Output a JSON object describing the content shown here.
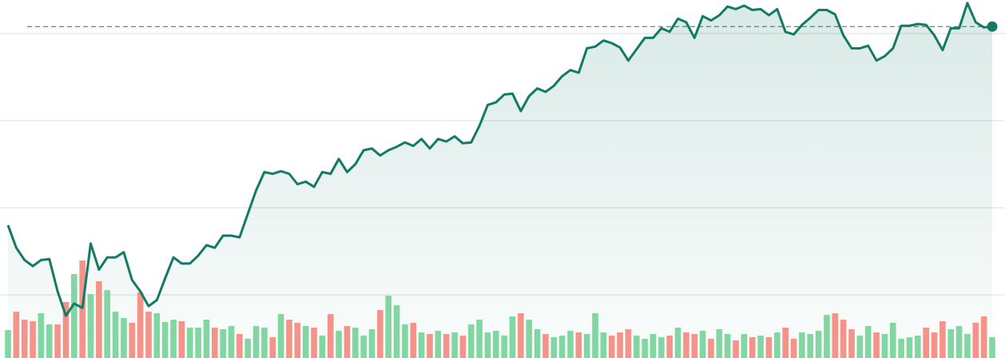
{
  "chart_data": {
    "type": "line",
    "categories": [
      null,
      null,
      null,
      null,
      null,
      null,
      null,
      null,
      null,
      null,
      null,
      null,
      null,
      null,
      null,
      null,
      null,
      null,
      null,
      null,
      null,
      null,
      null,
      null,
      null,
      null,
      null,
      null,
      null,
      null,
      null,
      null,
      null,
      null,
      null,
      null,
      null,
      null,
      null,
      null,
      null,
      null,
      null,
      null,
      null,
      null,
      null,
      null,
      null,
      null,
      null,
      null,
      null,
      null,
      null,
      null,
      null,
      null,
      null,
      null,
      null,
      null,
      null,
      null,
      null,
      null,
      null,
      null,
      null,
      null,
      null,
      null,
      null,
      null,
      null,
      null,
      null,
      null,
      null,
      null,
      null,
      null,
      null,
      null,
      null,
      null,
      null,
      null,
      null,
      null,
      null,
      null,
      null,
      null,
      null,
      null,
      null,
      null,
      null,
      null,
      null,
      null,
      null,
      null,
      null,
      null,
      null,
      null,
      null,
      null,
      null,
      null,
      null,
      null,
      null,
      null,
      null,
      null,
      null,
      null
    ],
    "values": [
      180,
      154,
      140,
      133,
      140,
      141,
      104,
      76,
      90,
      85,
      159,
      129,
      143,
      143,
      149,
      117,
      104,
      87,
      94,
      119,
      143,
      136,
      136,
      145,
      157,
      154,
      168,
      168,
      166,
      193,
      220,
      241,
      239,
      242,
      239,
      227,
      230,
      224,
      241,
      239,
      256,
      241,
      250,
      266,
      268,
      260,
      266,
      270,
      275,
      271,
      279,
      268,
      279,
      276,
      282,
      274,
      275,
      294,
      318,
      321,
      330,
      331,
      311,
      328,
      337,
      333,
      340,
      351,
      358,
      355,
      383,
      385,
      392,
      389,
      384,
      369,
      382,
      395,
      395,
      406,
      402,
      417,
      413,
      395,
      420,
      415,
      421,
      431,
      428,
      432,
      427,
      428,
      421,
      428,
      402,
      399,
      410,
      418,
      427,
      427,
      422,
      398,
      383,
      383,
      386,
      369,
      374,
      383,
      409,
      409,
      411,
      410,
      398,
      381,
      406,
      406,
      435,
      413,
      407,
      408
    ],
    "color": "#137a63",
    "volume": {
      "axis": "y2",
      "values": [
        35,
        58,
        48,
        46,
        56,
        42,
        42,
        70,
        105,
        122,
        80,
        96,
        85,
        58,
        50,
        44,
        82,
        58,
        56,
        45,
        48,
        46,
        38,
        38,
        48,
        38,
        36,
        40,
        30,
        24,
        40,
        38,
        26,
        55,
        48,
        44,
        40,
        38,
        28,
        55,
        34,
        40,
        38,
        28,
        36,
        60,
        78,
        66,
        42,
        44,
        32,
        30,
        34,
        30,
        32,
        28,
        42,
        48,
        32,
        34,
        28,
        52,
        56,
        48,
        36,
        30,
        26,
        28,
        34,
        32,
        30,
        56,
        32,
        28,
        32,
        36,
        28,
        24,
        30,
        26,
        28,
        38,
        32,
        30,
        34,
        24,
        36,
        30,
        22,
        30,
        26,
        28,
        26,
        32,
        38,
        24,
        32,
        30,
        34,
        54,
        56,
        48,
        36,
        28,
        40,
        32,
        30,
        44,
        24,
        26,
        28,
        38,
        32,
        46,
        36,
        40,
        30,
        44,
        52,
        26
      ],
      "up_color": "#82d6a2",
      "down_color": "#f4938a"
    },
    "ylim": [
      27.5,
      438.5
    ],
    "yticks": [
      100,
      200,
      300,
      400
    ],
    "y2lim": [
      0,
      448
    ],
    "grid": true,
    "last_value_line": true
  }
}
